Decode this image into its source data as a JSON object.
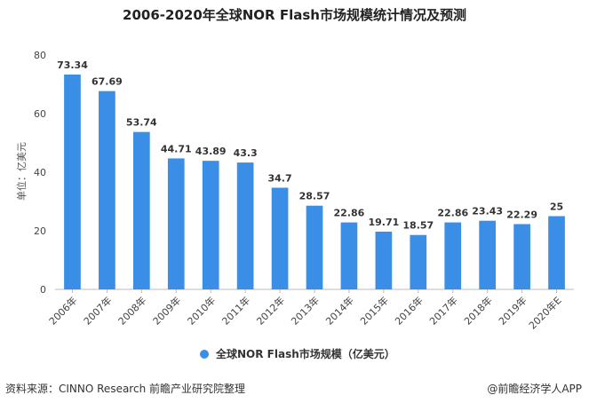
{
  "chart_data": {
    "type": "bar",
    "title": "2006-2020年全球NOR Flash市场规模统计情况及预测",
    "ylabel": "单位：亿美元",
    "xlabel": "",
    "categories": [
      "2006年",
      "2007年",
      "2008年",
      "2009年",
      "2010年",
      "2011年",
      "2012年",
      "2013年",
      "2014年",
      "2015年",
      "2016年",
      "2017年",
      "2018年",
      "2019年",
      "2020年E"
    ],
    "series": [
      {
        "name": "全球NOR Flash市场规模（亿美元）",
        "values": [
          73.34,
          67.69,
          53.74,
          44.71,
          43.89,
          43.3,
          34.7,
          28.57,
          22.86,
          19.71,
          18.57,
          22.86,
          23.43,
          22.29,
          25
        ],
        "value_labels": [
          "73.34",
          "67.69",
          "53.74",
          "44.71",
          "43.89",
          "43.3",
          "34.7",
          "28.57",
          "22.86",
          "19.71",
          "18.57",
          "22.86",
          "23.43",
          "22.29",
          "25"
        ]
      }
    ],
    "ylim": [
      0,
      80
    ],
    "yticks": [
      "0",
      "20",
      "40",
      "60",
      "80"
    ],
    "grid": false,
    "legend_position": "bottom",
    "bar_color": "#3a8ee6"
  },
  "footer": {
    "source": "资料来源：CINNO Research 前瞻产业研究院整理",
    "credit": "@前瞻经济学人APP"
  }
}
